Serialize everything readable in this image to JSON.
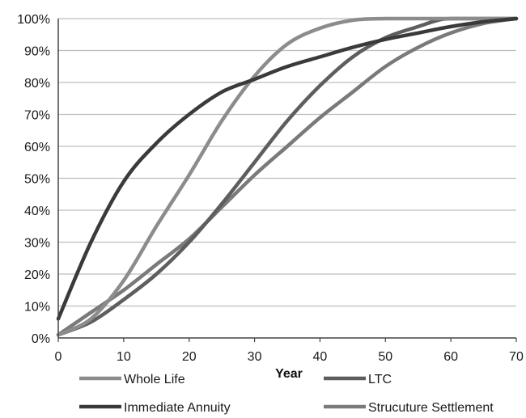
{
  "chart_data": {
    "type": "line",
    "title": "",
    "xlabel": "Year",
    "ylabel": "",
    "xlim": [
      0,
      70
    ],
    "ylim": [
      0,
      100
    ],
    "x_ticks": [
      "0",
      "10",
      "20",
      "30",
      "40",
      "50",
      "60",
      "70"
    ],
    "y_ticks": [
      "0%",
      "10%",
      "20%",
      "30%",
      "40%",
      "50%",
      "60%",
      "70%",
      "80%",
      "90%",
      "100%"
    ],
    "grid": "horizontal",
    "legend_position": "bottom",
    "series": [
      {
        "name": "Whole Life",
        "color": "#8c8c8c",
        "x": [
          0,
          5,
          10,
          15,
          20,
          25,
          30,
          35,
          40,
          45,
          50,
          55,
          60,
          65,
          70
        ],
        "y": [
          1,
          6,
          18,
          35,
          51,
          68,
          82,
          92,
          97,
          99.5,
          100,
          100,
          100,
          100,
          100
        ]
      },
      {
        "name": "LTC",
        "color": "#5e5e5e",
        "x": [
          0,
          5,
          10,
          15,
          20,
          25,
          30,
          35,
          40,
          45,
          50,
          55,
          58,
          60,
          65,
          70
        ],
        "y": [
          1,
          5,
          12,
          20,
          30,
          42,
          55,
          68,
          79,
          88,
          94,
          97.5,
          99.5,
          100,
          100,
          100
        ]
      },
      {
        "name": "Immediate Annuity",
        "color": "#3a3a3a",
        "x": [
          0,
          5,
          10,
          15,
          20,
          25,
          30,
          35,
          40,
          45,
          50,
          55,
          60,
          65,
          70
        ],
        "y": [
          6,
          30,
          49,
          61,
          70,
          77,
          81,
          85,
          88,
          91,
          93.5,
          95.5,
          97.5,
          99,
          100
        ]
      },
      {
        "name": "Strucuture Settlement",
        "color": "#7a7a7a",
        "x": [
          0,
          5,
          10,
          15,
          20,
          25,
          30,
          35,
          40,
          45,
          50,
          55,
          60,
          65,
          70
        ],
        "y": [
          1,
          8,
          15,
          23,
          31,
          41,
          51,
          60,
          69,
          77,
          85,
          91,
          95.5,
          98.5,
          100
        ]
      }
    ]
  }
}
